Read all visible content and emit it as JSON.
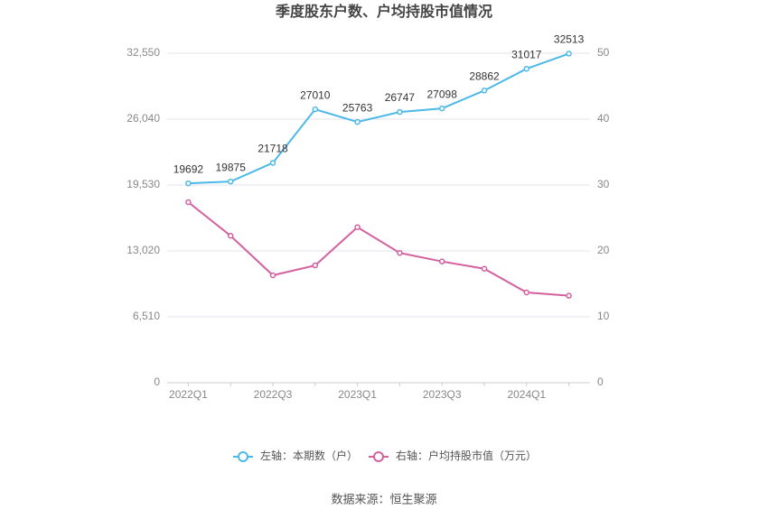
{
  "chart_data": {
    "type": "line",
    "title": "季度股东户数、户均持股市值情况",
    "source": "数据来源：恒生聚源",
    "categories": [
      "2022Q1",
      null,
      "2022Q3",
      null,
      "2023Q1",
      null,
      "2023Q3",
      null,
      "2024Q1",
      null
    ],
    "series": [
      {
        "name": "左轴：本期数（户）",
        "color": "#4cb8e8",
        "values": [
          19692,
          19875,
          21718,
          27010,
          25763,
          26747,
          27098,
          28862,
          31017,
          32513
        ]
      },
      {
        "name": "右轴：户均持股市值（万元）",
        "color": "#d4609f",
        "axis": "y2",
        "values": [
          27.4,
          22.3,
          16.3,
          17.8,
          23.6,
          19.7,
          18.4,
          17.3,
          13.7,
          13.2
        ]
      }
    ],
    "ylim": [
      0,
      32550
    ],
    "yticks": [
      0,
      {
        "value": 6510,
        "label": "6,510"
      },
      {
        "value": 13020,
        "label": "13,020"
      },
      {
        "value": 19530,
        "label": "19,530"
      },
      {
        "value": 26040,
        "label": "26,040"
      },
      {
        "value": 32550,
        "label": "32,550"
      }
    ],
    "y2lim": [
      0,
      50
    ],
    "y2ticks": [
      0,
      10,
      20,
      30,
      40,
      50
    ],
    "grid": true
  }
}
